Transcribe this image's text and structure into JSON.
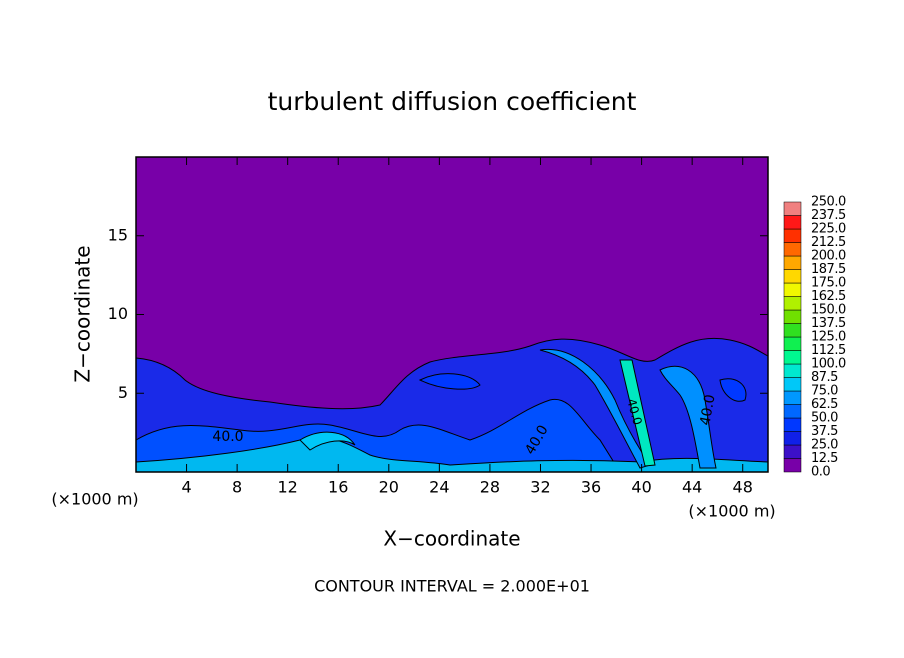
{
  "chart_data": {
    "type": "contour",
    "title": "turbulent diffusion coefficient",
    "xlabel": "X−coordinate",
    "ylabel": "Z−coordinate",
    "xunit": "(×1000 m)",
    "yunit": "(×1000 m)",
    "footnote": "CONTOUR INTERVAL = 2.000E+01",
    "contour_labels": [
      "40.0",
      "40.0",
      "40.0",
      "40.0"
    ],
    "xlim": [
      0,
      50
    ],
    "xticks": [
      4,
      8,
      12,
      16,
      20,
      24,
      28,
      32,
      36,
      40,
      44,
      48
    ],
    "ylim": [
      0,
      20
    ],
    "yticks": [
      5,
      10,
      15
    ],
    "colorbar_ticks": [
      {
        "value": 0,
        "label": "0.0"
      },
      12.5,
      {
        "value": 25,
        "label": "25.0"
      },
      37.5,
      {
        "value": 50,
        "label": "50.0"
      },
      62.5,
      {
        "value": 75,
        "label": "75.0"
      },
      87.5,
      {
        "value": 100,
        "label": "100.0"
      },
      112.5,
      {
        "value": 125,
        "label": "125.0"
      },
      137.5,
      {
        "value": 150,
        "label": "150.0"
      },
      162.5,
      {
        "value": 175,
        "label": "175.0"
      },
      187.5,
      {
        "value": 200,
        "label": "200.0"
      },
      212.5,
      {
        "value": 225,
        "label": "225.0"
      },
      237.5,
      {
        "value": 250,
        "label": "250.0"
      }
    ],
    "colorbar_colors": [
      "#7800a8",
      "#3c10c8",
      "#1020e8",
      "#0038ff",
      "#0068ff",
      "#0098ff",
      "#00c8f8",
      "#00e8d0",
      "#00f890",
      "#10f050",
      "#30e020",
      "#70e000",
      "#b0f000",
      "#f0f800",
      "#ffd800",
      "#ffa800",
      "#ff6800",
      "#ff3000",
      "#ff1818",
      "#f08080"
    ]
  }
}
